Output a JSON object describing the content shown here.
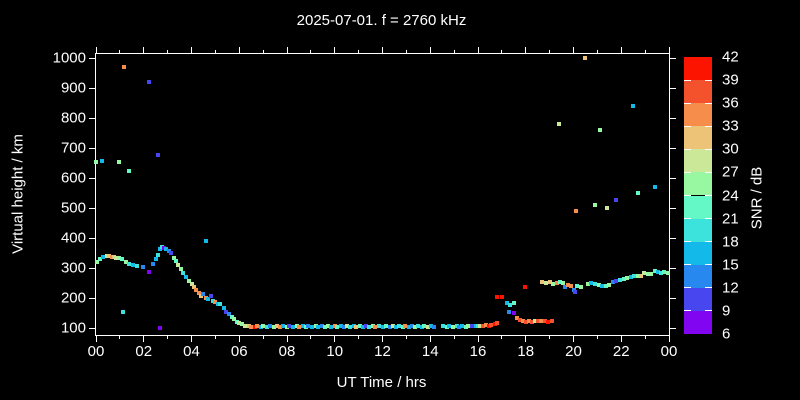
{
  "title": "2025-07-01. f = 2760 kHz",
  "axes": {
    "x": {
      "label": "UT Time / hrs",
      "range": [
        0,
        24
      ],
      "major_step": 2,
      "minor_step": 1,
      "tick_labels": [
        "00",
        "02",
        "04",
        "06",
        "08",
        "10",
        "12",
        "14",
        "16",
        "18",
        "20",
        "22",
        "00"
      ]
    },
    "y": {
      "label": "Virtual height / km",
      "range": [
        77,
        1013
      ],
      "tick_values": [
        100,
        200,
        300,
        400,
        500,
        600,
        700,
        800,
        900,
        1000
      ]
    }
  },
  "colorbar": {
    "label": "SNR / dB",
    "tick_values": [
      6,
      9,
      12,
      15,
      18,
      21,
      24,
      27,
      30,
      33,
      36,
      39,
      42
    ],
    "segment_colors": [
      "#8205F2",
      "#4846EE",
      "#2788F0",
      "#12B9E9",
      "#3BE3DC",
      "#63F8C6",
      "#98F7A1",
      "#CBE898",
      "#EDC377",
      "#F68D4B",
      "#F4512D",
      "#FD1400"
    ]
  },
  "chart_data": {
    "type": "scatter",
    "title": "2025-07-01. f = 2760 kHz",
    "xlabel": "UT Time / hrs",
    "ylabel": "Virtual height / km",
    "xlim": [
      0,
      24
    ],
    "ylim": [
      77,
      1013
    ],
    "color_label": "SNR / dB",
    "color_range": [
      6,
      42
    ],
    "point_format": [
      "time_hours_UT",
      "virtual_height_km",
      "snr_dB"
    ],
    "points": [
      [
        0.05,
        320,
        24
      ],
      [
        0.15,
        330,
        21
      ],
      [
        0.3,
        336,
        15
      ],
      [
        0.45,
        340,
        27
      ],
      [
        0.55,
        340,
        30
      ],
      [
        0.65,
        338,
        33
      ],
      [
        0.75,
        337,
        31
      ],
      [
        0.85,
        335,
        27
      ],
      [
        0.95,
        333,
        24
      ],
      [
        1.1,
        330,
        22
      ],
      [
        1.25,
        320,
        24
      ],
      [
        1.4,
        315,
        18
      ],
      [
        1.55,
        310,
        15
      ],
      [
        1.7,
        307,
        18
      ],
      [
        1.95,
        303,
        12
      ],
      [
        2.2,
        287,
        8
      ],
      [
        2.4,
        315,
        12
      ],
      [
        2.5,
        330,
        15
      ],
      [
        2.6,
        345,
        18
      ],
      [
        2.7,
        362,
        15
      ],
      [
        2.78,
        370,
        18
      ],
      [
        2.85,
        368,
        8
      ],
      [
        2.95,
        364,
        15
      ],
      [
        3.05,
        358,
        12
      ],
      [
        3.15,
        350,
        10
      ],
      [
        3.25,
        335,
        24
      ],
      [
        3.35,
        322,
        21
      ],
      [
        3.45,
        310,
        28
      ],
      [
        3.55,
        296,
        24
      ],
      [
        3.65,
        284,
        18
      ],
      [
        3.75,
        271,
        15
      ],
      [
        3.9,
        258,
        24
      ],
      [
        4.0,
        248,
        27
      ],
      [
        4.1,
        238,
        30
      ],
      [
        4.2,
        228,
        33
      ],
      [
        4.3,
        216,
        33
      ],
      [
        4.4,
        206,
        30
      ],
      [
        4.5,
        212,
        12
      ],
      [
        4.6,
        201,
        35
      ],
      [
        4.7,
        196,
        15
      ],
      [
        4.8,
        206,
        9
      ],
      [
        4.9,
        191,
        18
      ],
      [
        5.0,
        186,
        33
      ],
      [
        5.1,
        179,
        15
      ],
      [
        5.2,
        181,
        18
      ],
      [
        5.35,
        168,
        15
      ],
      [
        5.45,
        154,
        9
      ],
      [
        5.55,
        146,
        12
      ],
      [
        5.7,
        136,
        21
      ],
      [
        5.8,
        129,
        24
      ],
      [
        5.9,
        121,
        21
      ],
      [
        6.0,
        116,
        27
      ],
      [
        6.1,
        112,
        24
      ],
      [
        6.25,
        108,
        28
      ],
      [
        6.4,
        106,
        31
      ],
      [
        6.5,
        104,
        34
      ],
      [
        6.65,
        104,
        39
      ],
      [
        6.75,
        106,
        33
      ],
      [
        6.9,
        104,
        15
      ],
      [
        7.0,
        106,
        24
      ],
      [
        7.15,
        104,
        18
      ],
      [
        7.3,
        106,
        12
      ],
      [
        7.45,
        104,
        24
      ],
      [
        7.6,
        106,
        30
      ],
      [
        7.7,
        104,
        33
      ],
      [
        7.85,
        106,
        15
      ],
      [
        8.0,
        104,
        24
      ],
      [
        8.1,
        106,
        9
      ],
      [
        8.25,
        104,
        15
      ],
      [
        8.4,
        106,
        24
      ],
      [
        8.5,
        104,
        33
      ],
      [
        8.65,
        106,
        15
      ],
      [
        8.8,
        104,
        21
      ],
      [
        8.9,
        106,
        12
      ],
      [
        9.05,
        104,
        15
      ],
      [
        9.2,
        106,
        24
      ],
      [
        9.3,
        104,
        15
      ],
      [
        9.45,
        106,
        12
      ],
      [
        9.6,
        104,
        21
      ],
      [
        9.7,
        106,
        24
      ],
      [
        9.85,
        104,
        15
      ],
      [
        10.0,
        106,
        33
      ],
      [
        10.1,
        104,
        21
      ],
      [
        10.25,
        106,
        15
      ],
      [
        10.4,
        104,
        12
      ],
      [
        10.5,
        106,
        27
      ],
      [
        10.65,
        104,
        18
      ],
      [
        10.8,
        106,
        15
      ],
      [
        10.9,
        104,
        30
      ],
      [
        11.05,
        106,
        21
      ],
      [
        11.2,
        104,
        15
      ],
      [
        11.3,
        106,
        9
      ],
      [
        11.45,
        104,
        18
      ],
      [
        11.6,
        106,
        24
      ],
      [
        11.7,
        104,
        33
      ],
      [
        11.85,
        106,
        18
      ],
      [
        12.0,
        104,
        15
      ],
      [
        12.15,
        106,
        21
      ],
      [
        12.3,
        104,
        12
      ],
      [
        12.45,
        106,
        27
      ],
      [
        12.55,
        104,
        15
      ],
      [
        12.7,
        106,
        18
      ],
      [
        12.85,
        104,
        21
      ],
      [
        12.95,
        106,
        33
      ],
      [
        13.1,
        104,
        15
      ],
      [
        13.25,
        106,
        12
      ],
      [
        13.35,
        104,
        24
      ],
      [
        13.5,
        106,
        18
      ],
      [
        13.65,
        104,
        15
      ],
      [
        13.75,
        106,
        21
      ],
      [
        13.9,
        104,
        27
      ],
      [
        14.05,
        106,
        15
      ],
      [
        14.15,
        104,
        12
      ],
      [
        14.55,
        106,
        18
      ],
      [
        14.7,
        104,
        21
      ],
      [
        14.8,
        106,
        15
      ],
      [
        14.95,
        104,
        24
      ],
      [
        15.1,
        106,
        18
      ],
      [
        15.2,
        104,
        12
      ],
      [
        15.35,
        106,
        15
      ],
      [
        15.5,
        104,
        21
      ],
      [
        15.6,
        108,
        24
      ],
      [
        15.75,
        106,
        9
      ],
      [
        15.9,
        108,
        15
      ],
      [
        16.0,
        106,
        18
      ],
      [
        16.1,
        108,
        27
      ],
      [
        16.2,
        106,
        36
      ],
      [
        16.35,
        109,
        33
      ],
      [
        16.45,
        108,
        39
      ],
      [
        16.55,
        111,
        36
      ],
      [
        16.7,
        113,
        39
      ],
      [
        16.8,
        116,
        36
      ],
      [
        16.8,
        203,
        41
      ],
      [
        17.0,
        203,
        41
      ],
      [
        17.95,
        237,
        41
      ],
      [
        17.2,
        185,
        15
      ],
      [
        17.32,
        177,
        18
      ],
      [
        17.5,
        183,
        21
      ],
      [
        17.3,
        153,
        12
      ],
      [
        17.5,
        150,
        8
      ],
      [
        17.65,
        133,
        33
      ],
      [
        17.78,
        126,
        36
      ],
      [
        17.9,
        122,
        33
      ],
      [
        18.0,
        120,
        36
      ],
      [
        18.12,
        122,
        33
      ],
      [
        18.25,
        120,
        36
      ],
      [
        18.4,
        122,
        27
      ],
      [
        18.52,
        123,
        36
      ],
      [
        18.65,
        122,
        33
      ],
      [
        18.8,
        122,
        36
      ],
      [
        18.95,
        121,
        39
      ],
      [
        19.1,
        122,
        36
      ],
      [
        18.7,
        253,
        30
      ],
      [
        18.85,
        250,
        27
      ],
      [
        19.0,
        253,
        30
      ],
      [
        19.15,
        247,
        24
      ],
      [
        19.3,
        250,
        33
      ],
      [
        19.42,
        253,
        21
      ],
      [
        19.55,
        250,
        24
      ],
      [
        19.65,
        237,
        12
      ],
      [
        19.75,
        245,
        33
      ],
      [
        19.88,
        240,
        33
      ],
      [
        20.0,
        227,
        12
      ],
      [
        20.06,
        220,
        9
      ],
      [
        20.15,
        240,
        21
      ],
      [
        20.3,
        238,
        24
      ],
      [
        20.6,
        247,
        24
      ],
      [
        20.75,
        250,
        15
      ],
      [
        20.9,
        246,
        18
      ],
      [
        21.05,
        243,
        24
      ],
      [
        21.2,
        241,
        15
      ],
      [
        21.35,
        240,
        21
      ],
      [
        21.5,
        243,
        24
      ],
      [
        21.65,
        255,
        12
      ],
      [
        21.8,
        257,
        9
      ],
      [
        21.95,
        260,
        18
      ],
      [
        22.1,
        262,
        21
      ],
      [
        22.25,
        267,
        24
      ],
      [
        22.4,
        270,
        15
      ],
      [
        22.55,
        273,
        18
      ],
      [
        22.7,
        275,
        24
      ],
      [
        22.82,
        273,
        30
      ],
      [
        22.95,
        283,
        27
      ],
      [
        23.1,
        281,
        24
      ],
      [
        23.25,
        281,
        24
      ],
      [
        23.4,
        290,
        21
      ],
      [
        23.55,
        287,
        15
      ],
      [
        23.67,
        284,
        18
      ],
      [
        23.8,
        286,
        21
      ],
      [
        23.95,
        284,
        24
      ],
      [
        0.0,
        655,
        24
      ],
      [
        0.25,
        657,
        15
      ],
      [
        0.95,
        655,
        24
      ],
      [
        1.4,
        623,
        21
      ],
      [
        2.6,
        677,
        9
      ],
      [
        1.17,
        970,
        34
      ],
      [
        2.2,
        920,
        9
      ],
      [
        1.13,
        153,
        18
      ],
      [
        2.7,
        100,
        7
      ],
      [
        4.6,
        390,
        15
      ],
      [
        20.5,
        1000,
        31
      ],
      [
        22.5,
        840,
        16
      ],
      [
        19.4,
        780,
        28
      ],
      [
        21.1,
        760,
        25
      ],
      [
        20.1,
        490,
        34
      ],
      [
        20.9,
        510,
        25
      ],
      [
        21.4,
        500,
        28
      ],
      [
        21.8,
        527,
        9
      ],
      [
        22.7,
        550,
        22
      ],
      [
        23.4,
        570,
        17
      ]
    ]
  }
}
